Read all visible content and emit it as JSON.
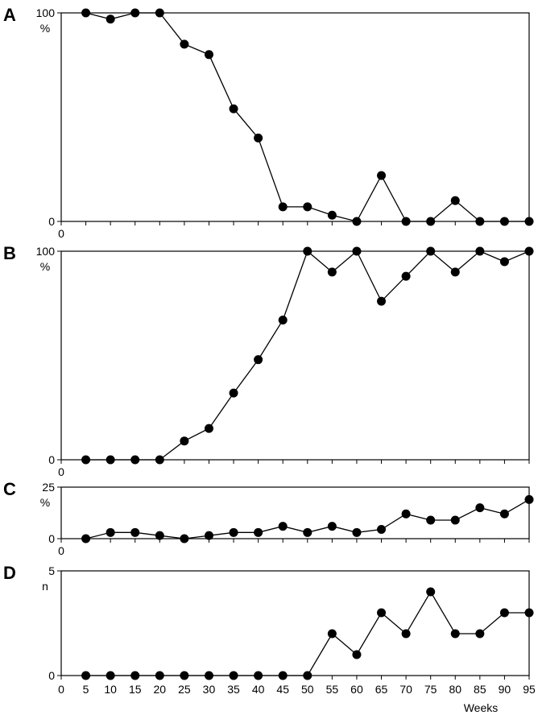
{
  "chart_data": [
    {
      "type": "line",
      "panel_label": "A",
      "ylabel": "%",
      "ylim": [
        0,
        100
      ],
      "y_ticks": [
        "100",
        "0"
      ],
      "x_start_label": "0",
      "x": [
        5,
        10,
        15,
        20,
        25,
        30,
        35,
        40,
        45,
        50,
        55,
        60,
        65,
        70,
        75,
        80,
        85,
        90,
        95
      ],
      "values": [
        100,
        97,
        100,
        100,
        85,
        80,
        54,
        40,
        7,
        7,
        3,
        0,
        22,
        0,
        0,
        10,
        0,
        0,
        0
      ]
    },
    {
      "type": "line",
      "panel_label": "B",
      "ylabel": "%",
      "ylim": [
        0,
        100
      ],
      "y_ticks": [
        "100",
        "0"
      ],
      "x_start_label": "0",
      "x": [
        5,
        10,
        15,
        20,
        25,
        30,
        35,
        40,
        45,
        50,
        55,
        60,
        65,
        70,
        75,
        80,
        85,
        90,
        95
      ],
      "values": [
        0,
        0,
        0,
        0,
        9,
        15,
        32,
        48,
        67,
        100,
        90,
        100,
        76,
        88,
        100,
        90,
        100,
        95,
        100
      ]
    },
    {
      "type": "line",
      "panel_label": "C",
      "ylabel": "%",
      "ylim": [
        0,
        25
      ],
      "y_ticks": [
        "25",
        "0"
      ],
      "x_start_label": "0",
      "x": [
        5,
        10,
        15,
        20,
        25,
        30,
        35,
        40,
        45,
        50,
        55,
        60,
        65,
        70,
        75,
        80,
        85,
        90,
        95
      ],
      "values": [
        0,
        3,
        3,
        1.5,
        0,
        1.5,
        3,
        3,
        6,
        3,
        6,
        3,
        4.5,
        12,
        9,
        9,
        15,
        12,
        19
      ]
    },
    {
      "type": "line",
      "panel_label": "D",
      "ylabel": "n",
      "ylim": [
        0,
        5
      ],
      "y_ticks": [
        "5",
        "0"
      ],
      "xlabel": "Weeks",
      "x_tick_labels": [
        "0",
        "5",
        "10",
        "15",
        "20",
        "25",
        "30",
        "35",
        "40",
        "45",
        "50",
        "55",
        "60",
        "65",
        "70",
        "75",
        "80",
        "85",
        "90",
        "95"
      ],
      "x": [
        5,
        10,
        15,
        20,
        25,
        30,
        35,
        40,
        45,
        50,
        55,
        60,
        65,
        70,
        75,
        80,
        85,
        90,
        95
      ],
      "values": [
        0,
        0,
        0,
        0,
        0,
        0,
        0,
        0,
        0,
        0,
        2,
        1,
        3,
        2,
        4,
        2,
        2,
        3,
        3
      ]
    }
  ]
}
